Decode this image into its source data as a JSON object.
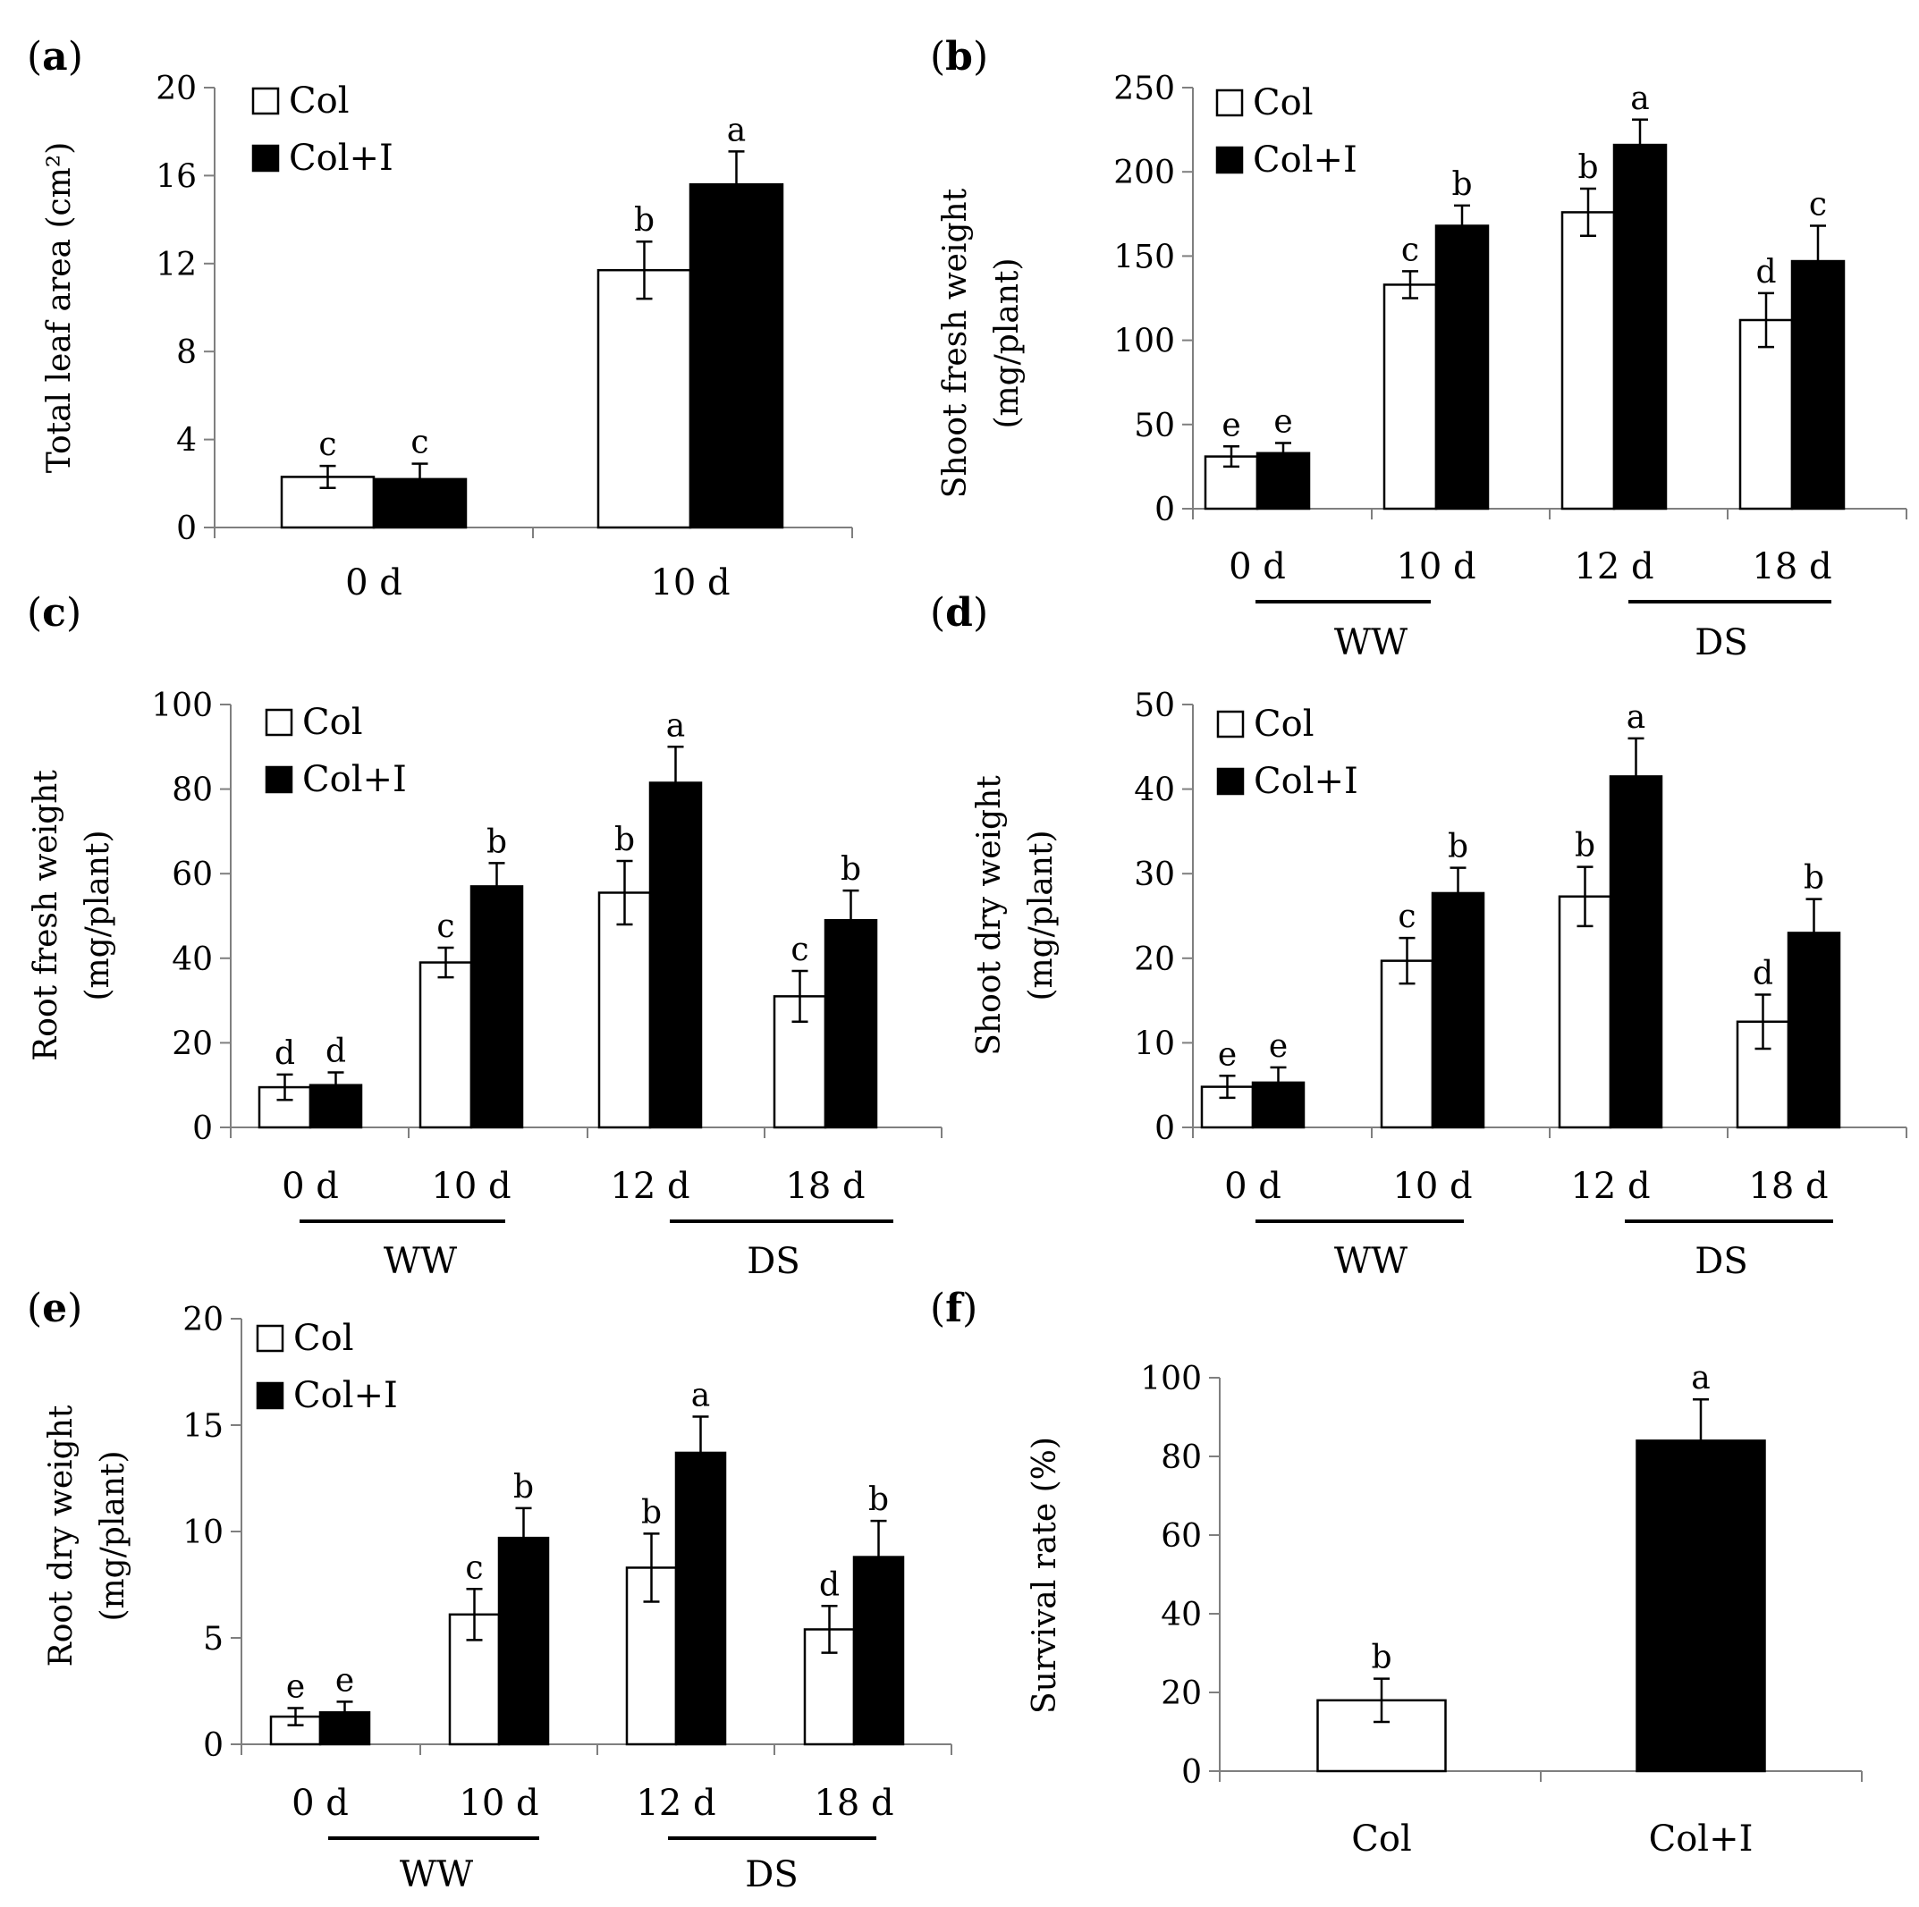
{
  "figure": {
    "legend": {
      "col": "Col",
      "coli": "Col+I"
    },
    "colors": {
      "col_fill": "#ffffff",
      "coli_fill": "#000000",
      "stroke": "#000000",
      "axis": "#7f7f7f"
    }
  },
  "chart_data": [
    {
      "panel_label": "a",
      "type": "bar",
      "ylabel": "Total leaf area (cm²)",
      "ylim": [
        0,
        20
      ],
      "yticks": [
        0,
        4,
        8,
        12,
        16,
        20
      ],
      "categories": [
        "0 d",
        "10 d"
      ],
      "groups": [],
      "series": [
        {
          "name": "Col",
          "values": [
            2.3,
            11.7
          ],
          "errors": [
            0.5,
            1.3
          ],
          "letters": [
            "c",
            "b"
          ]
        },
        {
          "name": "Col+I",
          "values": [
            2.2,
            15.6
          ],
          "errors": [
            0.7,
            1.5
          ],
          "letters": [
            "c",
            "a"
          ]
        }
      ]
    },
    {
      "panel_label": "b",
      "type": "bar",
      "ylabel": "Shoot fresh weight (mg/plant)",
      "ylim": [
        0,
        250
      ],
      "yticks": [
        0,
        50,
        100,
        150,
        200,
        250
      ],
      "categories": [
        "0 d",
        "10 d",
        "12 d",
        "18 d"
      ],
      "groups": [
        "WW",
        "DS"
      ],
      "series": [
        {
          "name": "Col",
          "values": [
            31,
            133,
            176,
            112
          ],
          "errors": [
            6,
            8,
            14,
            16
          ],
          "letters": [
            "e",
            "c",
            "b",
            "d"
          ]
        },
        {
          "name": "Col+I",
          "values": [
            33,
            168,
            216,
            147
          ],
          "errors": [
            6,
            12,
            15,
            21
          ],
          "letters": [
            "e",
            "b",
            "a",
            "c"
          ]
        }
      ]
    },
    {
      "panel_label": "c",
      "type": "bar",
      "ylabel": "Root fresh weight (mg/plant)",
      "ylim": [
        0,
        100
      ],
      "yticks": [
        0,
        20,
        40,
        60,
        80,
        100
      ],
      "categories": [
        "0 d",
        "10 d",
        "12 d",
        "18 d"
      ],
      "groups": [
        "WW",
        "DS"
      ],
      "series": [
        {
          "name": "Col",
          "values": [
            9.5,
            39,
            55.5,
            31
          ],
          "errors": [
            3,
            3.5,
            7.5,
            6
          ],
          "letters": [
            "d",
            "c",
            "b",
            "c"
          ]
        },
        {
          "name": "Col+I",
          "values": [
            10,
            57,
            81.5,
            49
          ],
          "errors": [
            3,
            5.5,
            8.5,
            7
          ],
          "letters": [
            "d",
            "b",
            "a",
            "b"
          ]
        }
      ]
    },
    {
      "panel_label": "d",
      "type": "bar",
      "ylabel": "Shoot dry weight (mg/plant)",
      "ylim": [
        0,
        50
      ],
      "yticks": [
        0,
        10,
        20,
        30,
        40,
        50
      ],
      "categories": [
        "0 d",
        "10 d",
        "12 d",
        "18 d"
      ],
      "groups": [
        "WW",
        "DS"
      ],
      "series": [
        {
          "name": "Col",
          "values": [
            4.8,
            19.7,
            27.3,
            12.5
          ],
          "errors": [
            1.3,
            2.7,
            3.5,
            3.2
          ],
          "letters": [
            "e",
            "c",
            "b",
            "d"
          ]
        },
        {
          "name": "Col+I",
          "values": [
            5.3,
            27.7,
            41.5,
            23
          ],
          "errors": [
            1.8,
            3,
            4.5,
            4
          ],
          "letters": [
            "e",
            "b",
            "a",
            "b"
          ]
        }
      ]
    },
    {
      "panel_label": "e",
      "type": "bar",
      "ylabel": "Root dry weight (mg/plant)",
      "ylim": [
        0,
        20
      ],
      "yticks": [
        0,
        5,
        10,
        15,
        20
      ],
      "categories": [
        "0 d",
        "10 d",
        "12 d",
        "18 d"
      ],
      "groups": [
        "WW",
        "DS"
      ],
      "series": [
        {
          "name": "Col",
          "values": [
            1.3,
            6.1,
            8.3,
            5.4
          ],
          "errors": [
            0.4,
            1.2,
            1.6,
            1.1
          ],
          "letters": [
            "e",
            "c",
            "b",
            "d"
          ]
        },
        {
          "name": "Col+I",
          "values": [
            1.5,
            9.7,
            13.7,
            8.8
          ],
          "errors": [
            0.5,
            1.4,
            1.7,
            1.7
          ],
          "letters": [
            "e",
            "b",
            "a",
            "b"
          ]
        }
      ]
    },
    {
      "panel_label": "f",
      "type": "bar",
      "ylabel": "Survival rate (%)",
      "ylim": [
        0,
        100
      ],
      "yticks": [
        0,
        20,
        40,
        60,
        80,
        100
      ],
      "categories": [
        "Col",
        "Col+I"
      ],
      "series": [
        {
          "name": "Survival",
          "values": [
            18,
            84
          ],
          "errors": [
            5.5,
            10.5
          ],
          "letters": [
            "b",
            "a"
          ]
        }
      ]
    }
  ]
}
